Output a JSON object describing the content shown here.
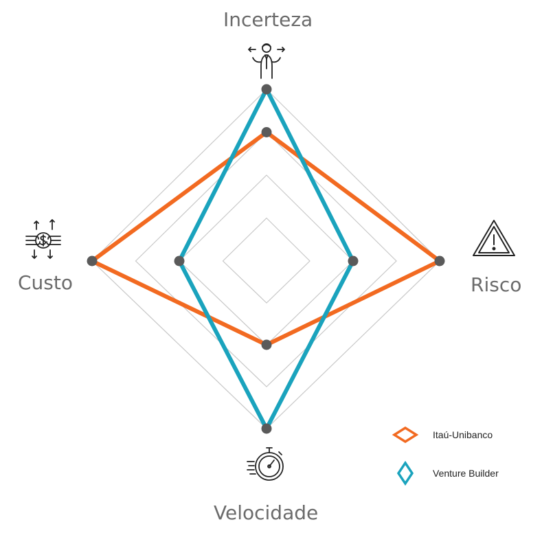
{
  "chart_data": {
    "type": "radar",
    "axes": [
      "Incerteza",
      "Risco",
      "Velocidade",
      "Custo"
    ],
    "range": [
      0,
      4
    ],
    "grid_levels": 4,
    "series": [
      {
        "name": "Itaú-Unibanco",
        "color": "#f26a21",
        "values": [
          3,
          4,
          2,
          4
        ]
      },
      {
        "name": "Venture Builder",
        "color": "#1aa3bd",
        "values": [
          4,
          2,
          4,
          2
        ]
      }
    ],
    "legend": "bottom-right",
    "marker_color": "#5a5a5a",
    "grid_color": "#c8c8c8"
  },
  "icons": {
    "Incerteza": "uncertain-person-icon",
    "Risco": "warning-triangle-icon",
    "Velocidade": "stopwatch-icon",
    "Custo": "money-cost-icon"
  }
}
